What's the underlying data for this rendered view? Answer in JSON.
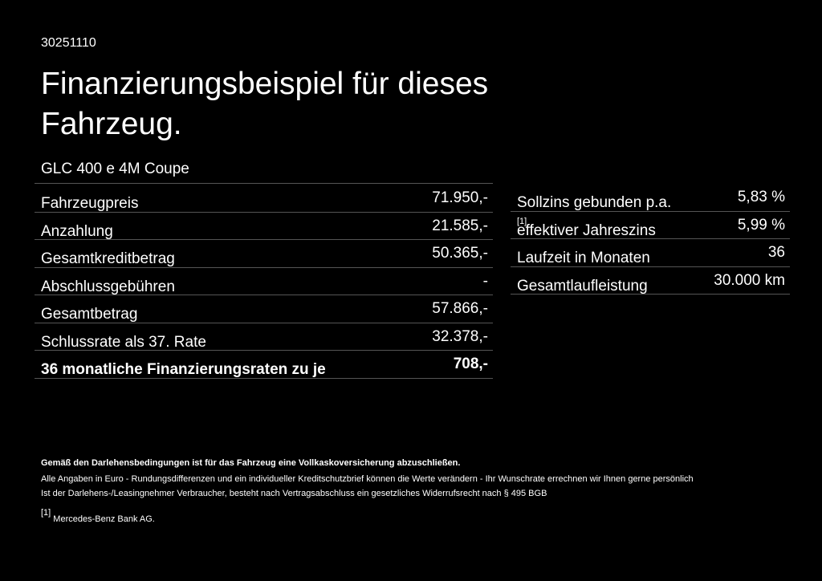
{
  "header": {
    "code": "30251110",
    "title_lines": [
      "Finanzierungsbeispiel für dieses",
      "Fahrzeug."
    ],
    "model": "GLC 400 e 4M Coupe"
  },
  "left_table": {
    "rows": [
      {
        "label": "Fahrzeugpreis",
        "value": "71.950,-"
      },
      {
        "label": "Anzahlung",
        "value": "21.585,-"
      },
      {
        "label": "Gesamtkreditbetrag",
        "value": "50.365,-"
      },
      {
        "label": "Abschlussgebühren",
        "value": "-"
      },
      {
        "label": "Gesamtbetrag",
        "value": "57.866,-"
      },
      {
        "label": "Schlussrate als 37. Rate",
        "value": "32.378,-"
      },
      {
        "label": "36 monatliche Finanzierungsraten zu je",
        "value": "708,-"
      }
    ]
  },
  "right_table": {
    "rows": [
      {
        "label": "Sollzins gebunden p.a.",
        "value": "5,83 %"
      },
      {
        "label": "effektiver Jahreszins",
        "note": "[1]",
        "value": "5,99 %"
      },
      {
        "label": "Laufzeit in Monaten",
        "value": "36"
      },
      {
        "label": "Gesamtlaufleistung",
        "value": "30.000 km"
      }
    ]
  },
  "footer": {
    "notice": "Gemäß den Darlehensbedingungen ist für das Fahrzeug eine Vollkaskoversicherung abzuschließen.",
    "lines": [
      "Alle Angaben in Euro - Rundungsdifferenzen und ein individueller Kreditschutzbrief können die Werte verändern - Ihr Wunschrate errechnen wir Ihnen gerne persönlich",
      "Ist der Darlehens-/Leasingnehmer Verbraucher, besteht nach Vertragsabschluss ein gesetzliches Widerrufsrecht nach § 495 BGB"
    ],
    "footnote_mark": "[1]",
    "footnote_text": "Mercedes-Benz Bank AG."
  }
}
